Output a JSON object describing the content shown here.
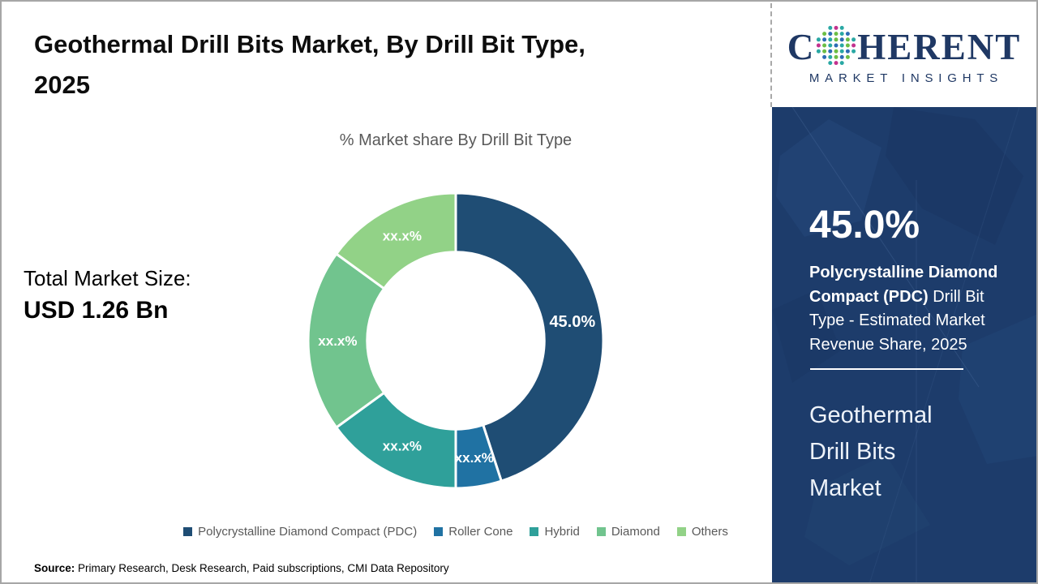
{
  "header": {
    "title_line1": "Geothermal Drill Bits Market, By Drill Bit Type,",
    "title_line2": "2025"
  },
  "chart_data": {
    "type": "pie",
    "subtype": "donut",
    "title": "% Market share By Drill Bit Type",
    "categories": [
      "Polycrystalline Diamond Compact (PDC)",
      "Roller Cone",
      "Hybrid",
      "Diamond",
      "Others"
    ],
    "values": [
      45.0,
      5.0,
      15.0,
      20.0,
      15.0
    ],
    "slice_labels": [
      "45.0%",
      "xx.x%",
      "xx.x%",
      "xx.x%",
      "xx.x%"
    ],
    "colors": [
      "#1F4D74",
      "#2072A3",
      "#2FA09A",
      "#71C48E",
      "#92D287"
    ],
    "donut_hole_ratio": 0.6,
    "start_angle_deg": 0,
    "direction": "clockwise",
    "legend_position": "bottom",
    "label_color": "#ffffff"
  },
  "total_market": {
    "label": "Total Market Size:",
    "value": "USD 1.26 Bn"
  },
  "sidebar": {
    "panel_bg": "#1D3C6B",
    "logo": {
      "brand_c": "C",
      "brand_rest": "HERENT",
      "tagline": "MARKET INSIGHTS",
      "brand_color": "#1F3864",
      "dot_colors": [
        "#2AA8A4",
        "#C3328E",
        "#6CBE45",
        "#2D6CB5"
      ]
    },
    "stat_value": "45.0%",
    "stat_desc_bold": "Polycrystalline Diamond Compact (PDC)",
    "stat_desc_rest": " Drill Bit Type - Estimated Market Revenue Share, 2025",
    "panel_title": "Geothermal Drill Bits Market"
  },
  "footer": {
    "source_label": "Source:",
    "source_text": " Primary Research, Desk Research, Paid subscriptions, CMI Data Repository"
  }
}
